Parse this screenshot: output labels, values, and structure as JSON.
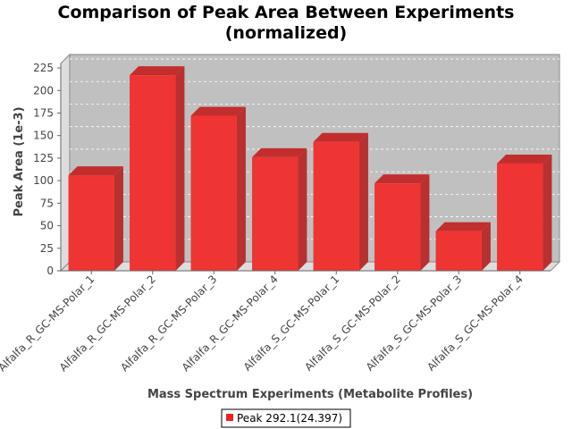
{
  "chart_data": {
    "type": "bar",
    "title_line1": "Comparison of Peak Area Between Experiments",
    "title_line2": "(normalized)",
    "xlabel": "Mass Spectrum Experiments (Metabolite Profiles)",
    "ylabel": "Peak Area (1e-3)",
    "categories": [
      "Alfalfa_R_GC-MS-Polar_1",
      "Alfalfa_R_GC-MS-Polar_2",
      "Alfalfa_R_GC-MS-Polar_3",
      "Alfalfa_R_GC-MS-Polar_4",
      "Alfalfa_S_GC-MS-Polar_1",
      "Alfalfa_S_GC-MS-Polar_2",
      "Alfalfa_S_GC-MS-Polar_3",
      "Alfalfa_S_GC-MS-Polar_4"
    ],
    "series": [
      {
        "name": "Peak 292.1(24.397)",
        "color": "#ee2222",
        "values": [
          106,
          217,
          172,
          126,
          143,
          97,
          44,
          119
        ]
      }
    ],
    "ylim": [
      0,
      230
    ],
    "yticks": [
      0,
      25,
      50,
      75,
      100,
      125,
      150,
      175,
      200,
      225
    ],
    "grid": true,
    "legend_position": "bottom-center"
  }
}
